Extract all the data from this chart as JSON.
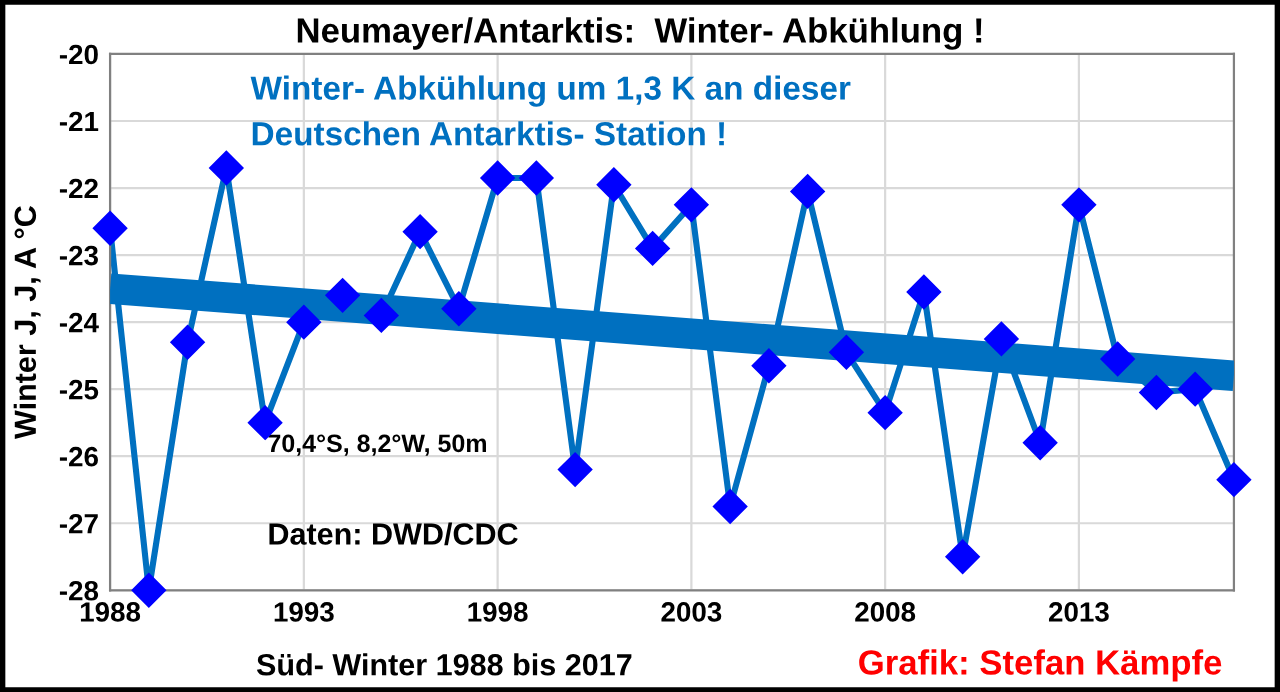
{
  "chart_data": {
    "type": "line",
    "title": "Neumayer/Antarktis:  Winter- Abkühlung !",
    "xlabel": "Süd- Winter 1988 bis 2017",
    "ylabel": "Winter J, J, A °C",
    "x": [
      1988,
      1989,
      1990,
      1991,
      1992,
      1993,
      1994,
      1995,
      1996,
      1997,
      1998,
      1999,
      2000,
      2001,
      2002,
      2003,
      2004,
      2005,
      2006,
      2007,
      2008,
      2009,
      2010,
      2011,
      2012,
      2013,
      2014,
      2015,
      2016,
      2017
    ],
    "series": [
      {
        "color": "#0000ff",
        "marker": "diamond",
        "values": [
          -22.6,
          -28.0,
          -24.3,
          -21.7,
          -25.5,
          -24.0,
          -23.6,
          -23.9,
          -22.65,
          -23.8,
          -21.85,
          -21.85,
          -26.2,
          -21.95,
          -22.9,
          -22.25,
          -26.75,
          -24.65,
          -22.05,
          -24.45,
          -25.35,
          -23.55,
          -27.5,
          -24.25,
          -25.8,
          -22.25,
          -24.55,
          -25.05,
          -25.0,
          -26.35
        ]
      },
      {
        "type": "line",
        "color": "#0070c0",
        "marker": "none",
        "x": [
          1988,
          2017
        ],
        "values": [
          -23.5,
          -24.8
        ]
      }
    ],
    "xlim": [
      1988,
      2017
    ],
    "xticks": [
      1988,
      1993,
      1998,
      2003,
      2008,
      2013
    ],
    "ylim": [
      -28,
      -20
    ],
    "yticks": [
      -28,
      -27,
      -26,
      -25,
      -24,
      -23,
      -22,
      -21,
      -20
    ],
    "grid": true,
    "legend": false,
    "annotations": [
      "Winter- Abkühlung um 1,3 K an dieser\nDeutschen Antarktis- Station !",
      "70,4°S, 8,2°W, 50m",
      "Daten: DWD/CDC",
      "Grafik: Stefan Kämpfe"
    ]
  }
}
